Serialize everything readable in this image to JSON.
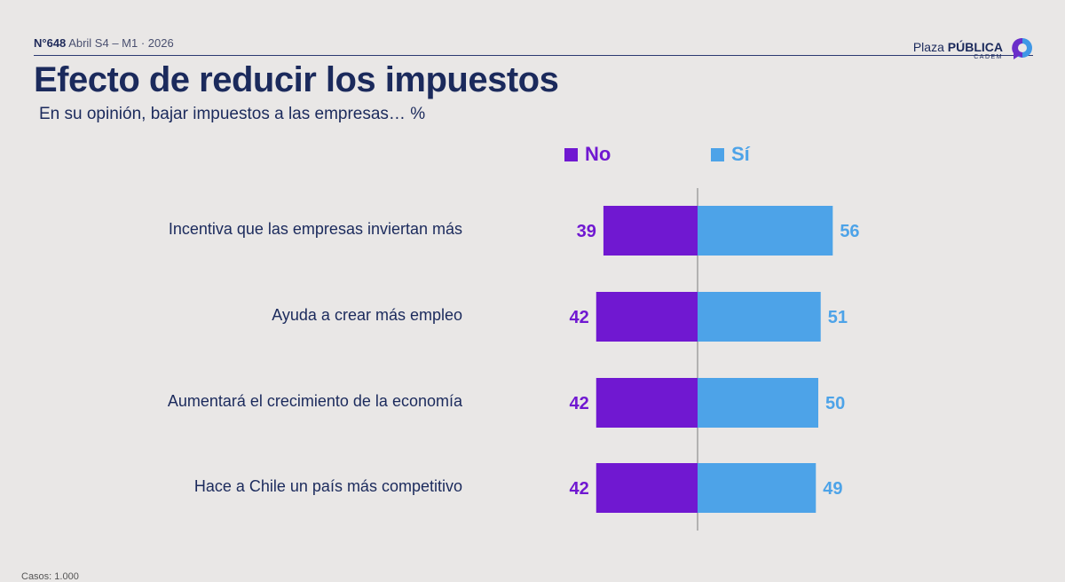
{
  "header": {
    "issue": "N°648",
    "period": "Abril S4 – M1 · 2026",
    "title": "Efecto de reducir los impuestos",
    "subtitle": "En su opinión, bajar impuestos a las empresas… %"
  },
  "logo": {
    "name_light": "Plaza",
    "name_bold": "PÚBLICA",
    "sub": "CADEM",
    "color_a": "#6a2ec9",
    "color_b": "#3f97e6"
  },
  "colors": {
    "no": "#7018d1",
    "si": "#4da3e8",
    "axis": "#8f8f8f",
    "text": "#1b2a5c"
  },
  "chart_data": {
    "type": "bar",
    "orientation": "horizontal-diverging",
    "categories": [
      "Incentiva que las empresas inviertan más",
      "Ayuda a crear más empleo",
      "Aumentará el crecimiento de la economía",
      "Hace a Chile un país más competitivo"
    ],
    "series": [
      {
        "name": "No",
        "values": [
          39,
          42,
          42,
          42
        ]
      },
      {
        "name": "Sí",
        "values": [
          56,
          51,
          50,
          49
        ]
      }
    ],
    "legend_position": "top",
    "grid": false
  },
  "footer": {
    "text": "Casos: 1.000"
  }
}
